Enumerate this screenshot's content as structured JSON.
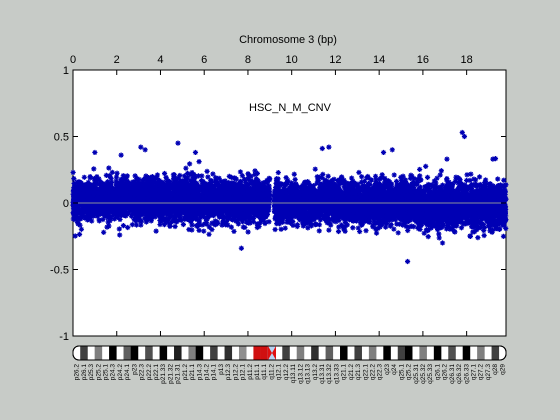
{
  "colors": {
    "background": "#c7cbc7",
    "plot_bg": "#ffffff",
    "points": "#0000b4",
    "baseline": "#8a8f99",
    "centromere": "#e01010",
    "highlight_band": "#b7d4f3"
  },
  "chart_data": {
    "type": "scatter",
    "title": "Chromosome 3 (bp)",
    "annotation": "HSC_N_M_CNV",
    "x_axis_position": "top",
    "x_tick_labels": [
      "0",
      "2",
      "4",
      "6",
      "8",
      "10",
      "12",
      "14",
      "16",
      "18"
    ],
    "x_ticks": [
      0,
      2,
      4,
      6,
      8,
      10,
      12,
      14,
      16,
      18
    ],
    "xlim": [
      0,
      19.8
    ],
    "ylim": [
      -1,
      1
    ],
    "y_ticks": [
      -1,
      -0.5,
      0,
      0.5,
      1
    ],
    "y_tick_labels": [
      "-1",
      "-0.5",
      "0",
      "0.5",
      "1"
    ],
    "grid": false,
    "baseline_y": 0,
    "segments": [
      {
        "x": [
          0,
          9.0
        ],
        "y_center": 0.02,
        "y_spread": 0.14
      },
      {
        "x": [
          9.2,
          15.3
        ],
        "y_center": 0.0,
        "y_spread": 0.14
      },
      {
        "x": [
          15.3,
          19.8
        ],
        "y_center": -0.02,
        "y_spread": 0.15
      }
    ],
    "outliers": [
      {
        "x": 1.0,
        "y": 0.38
      },
      {
        "x": 2.2,
        "y": 0.36
      },
      {
        "x": 3.1,
        "y": 0.42
      },
      {
        "x": 3.3,
        "y": 0.4
      },
      {
        "x": 4.8,
        "y": 0.45
      },
      {
        "x": 5.6,
        "y": 0.38
      },
      {
        "x": 7.7,
        "y": -0.34
      },
      {
        "x": 11.4,
        "y": 0.41
      },
      {
        "x": 11.7,
        "y": 0.42
      },
      {
        "x": 14.2,
        "y": 0.38
      },
      {
        "x": 14.6,
        "y": 0.4
      },
      {
        "x": 15.3,
        "y": -0.44
      },
      {
        "x": 17.1,
        "y": 0.33
      },
      {
        "x": 17.8,
        "y": 0.53
      },
      {
        "x": 17.9,
        "y": 0.5
      },
      {
        "x": 19.2,
        "y": 0.33
      }
    ],
    "gap": [
      9.0,
      9.2
    ]
  },
  "ideogram": {
    "centromere_x": 9.1,
    "band_labels": [
      "p26.2",
      "p26.1",
      "p25.3",
      "p25.2",
      "p25.1",
      "p24.3",
      "p24.2",
      "p24.1",
      "p23",
      "p22.3",
      "p22.2",
      "p22.1",
      "p21.33",
      "p21.32",
      "p21.31",
      "p21.2",
      "p21.1",
      "p14.3",
      "p14.2",
      "p14.1",
      "p13",
      "p12.3",
      "p12.2",
      "p12.1",
      "p11.2",
      "p11.1",
      "q11.1",
      "q11.2",
      "q12.1",
      "q12.2",
      "q13.11",
      "q13.12",
      "q13.13",
      "q13.2",
      "q13.31",
      "q13.32",
      "q13.33",
      "q21.1",
      "q21.2",
      "q21.3",
      "q22.1",
      "q22.2",
      "q22.3",
      "q23",
      "q24",
      "q25.1",
      "q25.2",
      "q25.31",
      "q25.32",
      "q25.33",
      "q26.1",
      "q26.2",
      "q26.31",
      "q26.32",
      "q26.33",
      "q27.1",
      "q27.2",
      "q27.3",
      "q28",
      "q29"
    ]
  }
}
